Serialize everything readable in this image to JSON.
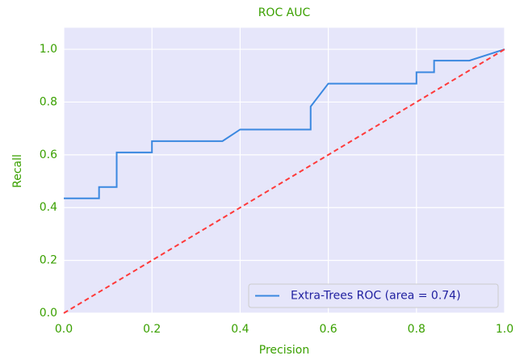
{
  "chart_data": {
    "type": "line",
    "title": "ROC AUC",
    "xlabel": "Precision",
    "ylabel": "Recall",
    "xlim": [
      0,
      1
    ],
    "ylim": [
      0,
      1.04
    ],
    "xticks": [
      {
        "value": 0,
        "label": "0.0"
      },
      0.2,
      0.4,
      0.6,
      0.8,
      {
        "value": 1,
        "label": "1.0"
      }
    ],
    "yticks": [
      {
        "value": 0,
        "label": "0.0"
      },
      0.2,
      0.4,
      0.6,
      0.8,
      {
        "value": 1,
        "label": "1.0"
      }
    ],
    "grid": true,
    "legend": "lower right",
    "series": [
      {
        "name": "Extra-Trees ROC (area = 0.74)",
        "color": "#3a88e0",
        "x": [
          0,
          0.08,
          0.08,
          0.12,
          0.12,
          0.2,
          0.2,
          0.36,
          0.4,
          0.56,
          0.56,
          0.6,
          0.8,
          0.8,
          0.84,
          0.84,
          0.92,
          1.0
        ],
        "values": [
          0.435,
          0.435,
          0.478,
          0.478,
          0.609,
          0.609,
          0.652,
          0.652,
          0.696,
          0.696,
          0.783,
          0.87,
          0.87,
          0.913,
          0.913,
          0.957,
          0.957,
          1.0
        ]
      },
      {
        "name": null,
        "color": "#ff3a3a",
        "dashed": true,
        "x": [
          0,
          1
        ],
        "values": [
          0,
          1
        ]
      }
    ]
  }
}
